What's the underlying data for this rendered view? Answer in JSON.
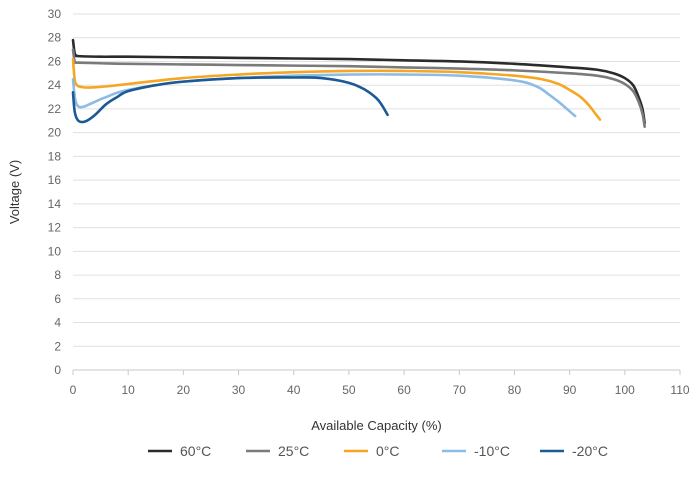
{
  "chart_data": {
    "type": "line",
    "xlabel": "Available Capacity (%)",
    "ylabel": "Voltage (V)",
    "xlim": [
      0,
      110
    ],
    "ylim": [
      0,
      30
    ],
    "x_ticks": [
      0,
      10,
      20,
      30,
      40,
      50,
      60,
      70,
      80,
      90,
      100,
      110
    ],
    "y_ticks": [
      0,
      2,
      4,
      6,
      8,
      10,
      12,
      14,
      16,
      18,
      20,
      22,
      24,
      26,
      28,
      30
    ],
    "grid": "horizontal",
    "legend": "bottom",
    "series": [
      {
        "name": "60°C",
        "color": "#2b2b2b",
        "x": [
          0,
          0.3,
          0.6,
          1,
          5,
          10,
          20,
          30,
          40,
          50,
          60,
          70,
          80,
          90,
          95,
          98,
          100,
          101.5,
          102.5,
          103.2,
          103.6
        ],
        "y": [
          27.8,
          26.7,
          26.5,
          26.45,
          26.4,
          26.4,
          26.35,
          26.3,
          26.25,
          26.2,
          26.1,
          26.0,
          25.8,
          25.5,
          25.3,
          25.0,
          24.6,
          24.0,
          23.0,
          22.0,
          20.8
        ]
      },
      {
        "name": "25°C",
        "color": "#7a7a7a",
        "x": [
          0,
          0.3,
          0.6,
          1,
          5,
          10,
          20,
          30,
          40,
          50,
          60,
          70,
          80,
          90,
          95,
          98,
          100,
          101.5,
          102.5,
          103.2,
          103.6
        ],
        "y": [
          27.0,
          26.0,
          25.9,
          25.9,
          25.85,
          25.8,
          25.75,
          25.7,
          25.65,
          25.6,
          25.5,
          25.4,
          25.25,
          25.0,
          24.8,
          24.5,
          24.1,
          23.5,
          22.6,
          21.6,
          20.5
        ]
      },
      {
        "name": "0°C",
        "color": "#f5a623",
        "x": [
          0,
          0.3,
          0.7,
          1.5,
          3,
          6,
          10,
          20,
          30,
          40,
          50,
          60,
          70,
          80,
          85,
          88,
          90,
          92,
          93.5,
          94.5,
          95.5
        ],
        "y": [
          26.2,
          24.5,
          24.0,
          23.85,
          23.8,
          23.9,
          24.1,
          24.6,
          24.9,
          25.1,
          25.2,
          25.2,
          25.1,
          24.8,
          24.5,
          24.1,
          23.6,
          23.0,
          22.3,
          21.7,
          21.1
        ]
      },
      {
        "name": "-10°C",
        "color": "#8cbce6",
        "x": [
          0,
          0.4,
          1,
          2,
          3.5,
          6,
          10,
          20,
          30,
          40,
          50,
          60,
          70,
          80,
          84,
          86,
          88,
          89.5,
          91
        ],
        "y": [
          24.5,
          22.8,
          22.2,
          22.2,
          22.5,
          23.0,
          23.6,
          24.3,
          24.6,
          24.8,
          24.9,
          24.9,
          24.8,
          24.4,
          23.9,
          23.3,
          22.6,
          22.0,
          21.4
        ]
      },
      {
        "name": "-20°C",
        "color": "#1b5a96",
        "x": [
          0,
          0.3,
          0.8,
          1.5,
          2.5,
          4,
          6,
          8,
          10,
          15,
          20,
          30,
          40,
          45,
          50,
          53,
          55,
          56,
          57
        ],
        "y": [
          23.4,
          21.8,
          21.1,
          20.9,
          21.0,
          21.5,
          22.4,
          23.0,
          23.5,
          24.0,
          24.3,
          24.6,
          24.65,
          24.6,
          24.2,
          23.6,
          22.9,
          22.3,
          21.5
        ]
      }
    ]
  }
}
